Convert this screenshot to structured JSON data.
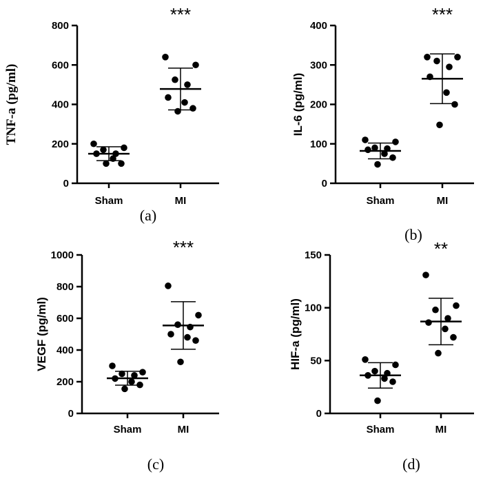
{
  "chart_data": [
    {
      "type": "scatter",
      "panel_label": "(a)",
      "ylabel": "TNF-a (pg/ml)",
      "ylim": [
        0,
        800
      ],
      "yticks": [
        "0",
        "200",
        "400",
        "600",
        "800"
      ],
      "categories": [
        "Sham",
        "MI"
      ],
      "significance": "***",
      "groups": [
        {
          "name": "Sham",
          "mean": 150,
          "sd_low": 115,
          "sd_high": 185,
          "points": [
            200,
            180,
            170,
            150,
            150,
            125,
            100,
            100
          ]
        },
        {
          "name": "MI",
          "mean": 478,
          "sd_low": 372,
          "sd_high": 584,
          "points": [
            640,
            600,
            525,
            500,
            435,
            410,
            380,
            365
          ]
        }
      ]
    },
    {
      "type": "scatter",
      "panel_label": "(b)",
      "ylabel": "IL-6 (pg/ml)",
      "ylim": [
        0,
        400
      ],
      "yticks": [
        "0",
        "100",
        "200",
        "300",
        "400"
      ],
      "categories": [
        "Sham",
        "MI"
      ],
      "significance": "***",
      "groups": [
        {
          "name": "Sham",
          "mean": 82,
          "sd_low": 62,
          "sd_high": 102,
          "points": [
            110,
            105,
            90,
            88,
            85,
            75,
            65,
            48
          ]
        },
        {
          "name": "MI",
          "mean": 265,
          "sd_low": 202,
          "sd_high": 328,
          "points": [
            320,
            320,
            310,
            295,
            270,
            230,
            200,
            148
          ]
        }
      ]
    },
    {
      "type": "scatter",
      "panel_label": "(c)",
      "ylabel": "VEGF (pg/ml)",
      "ylim": [
        0,
        1000
      ],
      "yticks": [
        "0",
        "200",
        "400",
        "600",
        "800",
        "1000"
      ],
      "categories": [
        "Sham",
        "MI"
      ],
      "significance": "***",
      "groups": [
        {
          "name": "Sham",
          "mean": 222,
          "sd_low": 178,
          "sd_high": 266,
          "points": [
            300,
            260,
            250,
            240,
            220,
            200,
            180,
            155
          ]
        },
        {
          "name": "MI",
          "mean": 555,
          "sd_low": 405,
          "sd_high": 705,
          "points": [
            805,
            620,
            560,
            545,
            500,
            480,
            460,
            325
          ]
        }
      ]
    },
    {
      "type": "scatter",
      "panel_label": "(d)",
      "ylabel": "HIF-a (pg/ml)",
      "ylim": [
        0,
        150
      ],
      "yticks": [
        "0",
        "50",
        "100",
        "150"
      ],
      "categories": [
        "Sham",
        "MI"
      ],
      "significance": "**",
      "groups": [
        {
          "name": "Sham",
          "mean": 36,
          "sd_low": 24,
          "sd_high": 48,
          "points": [
            51,
            46,
            40,
            38,
            36,
            33,
            30,
            12
          ]
        },
        {
          "name": "MI",
          "mean": 87,
          "sd_low": 65,
          "sd_high": 109,
          "points": [
            131,
            102,
            98,
            90,
            86,
            80,
            72,
            57
          ]
        }
      ]
    }
  ]
}
